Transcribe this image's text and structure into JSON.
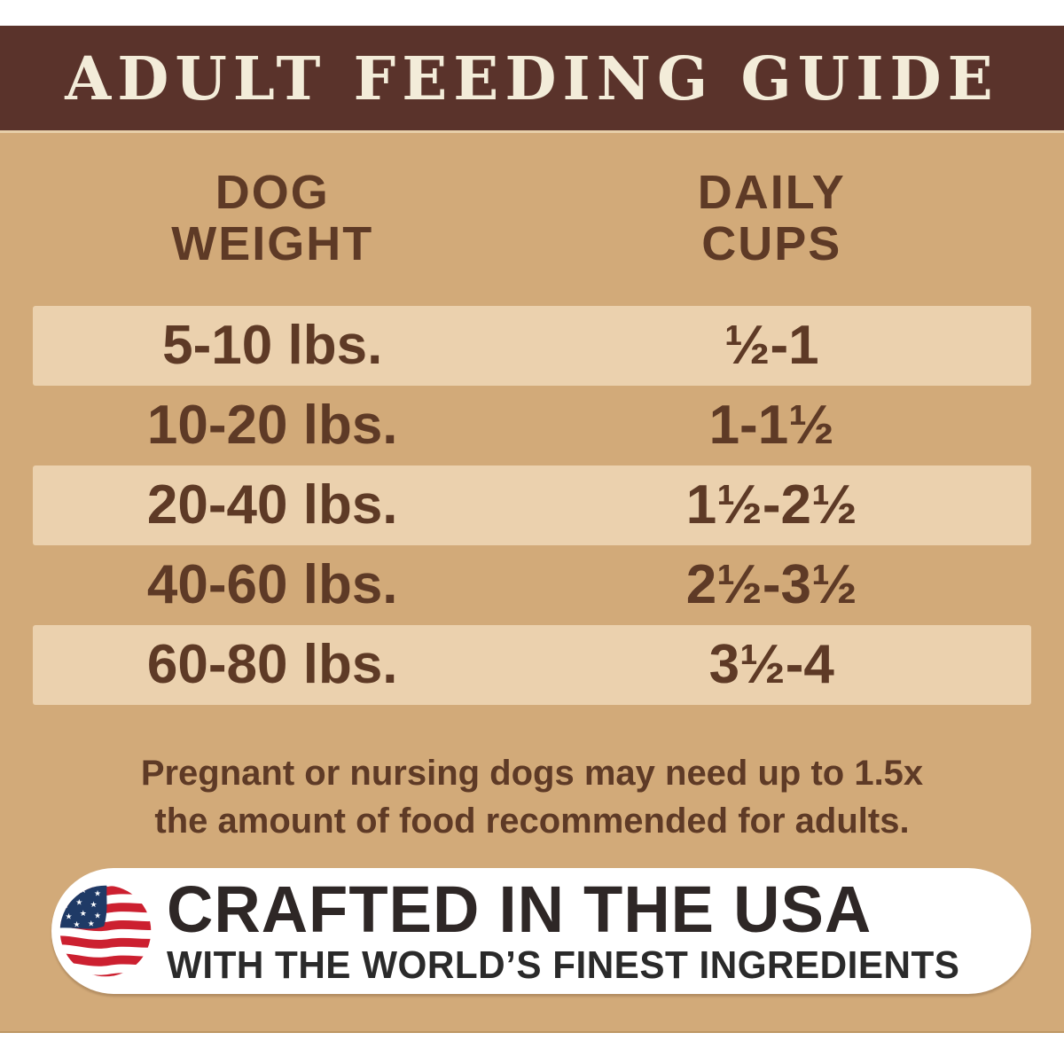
{
  "title": "ADULT FEEDING GUIDE",
  "table": {
    "header": {
      "weight": "DOG\nWEIGHT",
      "cups": "DAILY\nCUPS"
    },
    "rows": [
      {
        "weight": "5-10 lbs.",
        "cups": "½-1"
      },
      {
        "weight": "10-20 lbs.",
        "cups": "1-1½"
      },
      {
        "weight": "20-40 lbs.",
        "cups": "1½-2½"
      },
      {
        "weight": "40-60 lbs.",
        "cups": "2½-3½"
      },
      {
        "weight": "60-80 lbs.",
        "cups": "3½-4"
      }
    ]
  },
  "note": "Pregnant or nursing dogs may need up to 1.5x\nthe amount of food recommended for adults.",
  "footer": {
    "headline": "CRAFTED IN THE USA",
    "subline": "WITH THE WORLD’S FINEST INGREDIENTS",
    "flag_icon": "usa-flag-icon"
  },
  "colors": {
    "band_brown": "#5a332b",
    "title_cream": "#f3ecd9",
    "background_tan": "#d2aa79",
    "stripe_light": "#ebd1ae",
    "text_brown": "#5e3a26",
    "footer_text": "#2e2726",
    "flag_red": "#cc2030",
    "flag_blue": "#1f3a66"
  }
}
